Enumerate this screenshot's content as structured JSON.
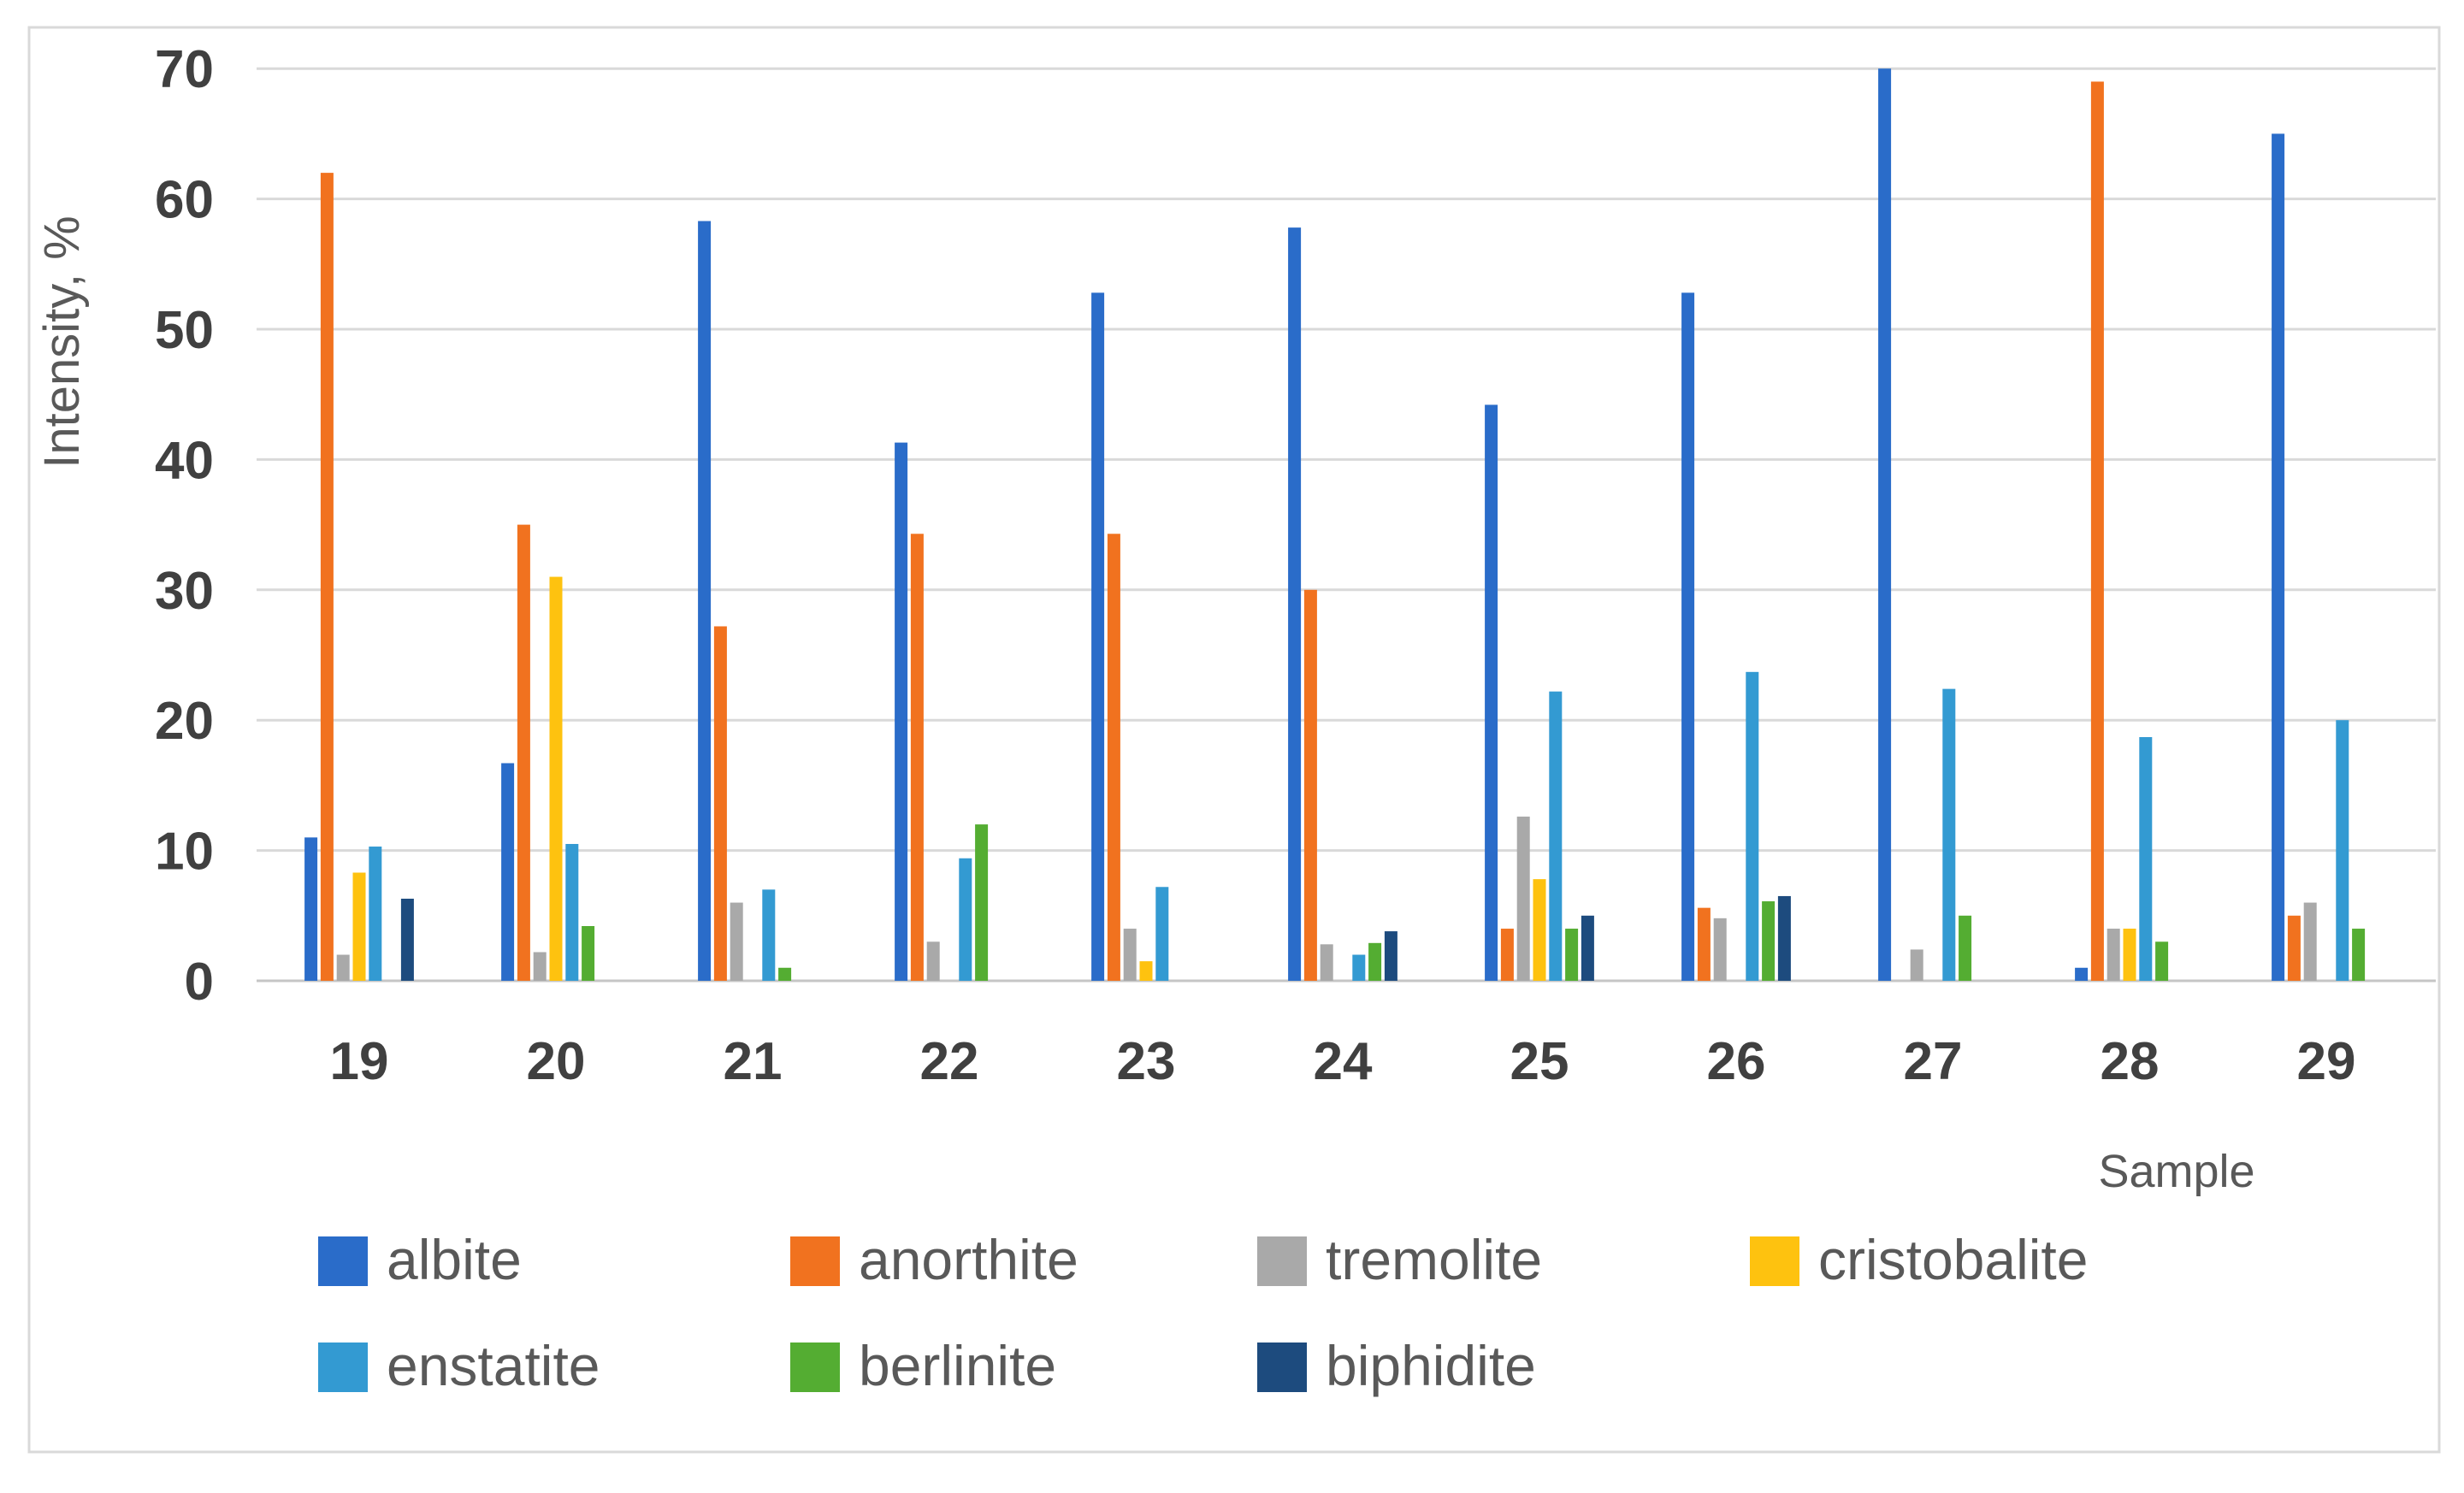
{
  "chart_data": {
    "type": "bar",
    "title": "",
    "xlabel": "Sample",
    "ylabel": "Intensity, %",
    "ylim": [
      0,
      70
    ],
    "yticks": [
      0,
      10,
      20,
      30,
      40,
      50,
      60,
      70
    ],
    "grid": true,
    "legend_position": "bottom",
    "categories": [
      "19",
      "20",
      "21",
      "22",
      "23",
      "24",
      "25",
      "26",
      "27",
      "28",
      "29"
    ],
    "series": [
      {
        "name": "albite",
        "color": "#2a6cc9",
        "values": [
          11,
          16.7,
          58.3,
          41.3,
          52.8,
          57.8,
          44.2,
          52.8,
          70,
          1,
          65
        ]
      },
      {
        "name": "anorthite",
        "color": "#f1721f",
        "values": [
          62,
          35,
          27.2,
          34.3,
          34.3,
          30,
          4,
          5.6,
          0,
          69,
          5
        ]
      },
      {
        "name": "tremolite",
        "color": "#a9a9a9",
        "values": [
          2,
          2.2,
          6,
          3,
          4,
          2.8,
          12.6,
          4.8,
          2.4,
          4,
          6
        ]
      },
      {
        "name": "cristobalite",
        "color": "#fec20f",
        "values": [
          8.3,
          31,
          0,
          0,
          1.5,
          0,
          7.8,
          0,
          0,
          4,
          0
        ]
      },
      {
        "name": "enstatite",
        "color": "#339ad2",
        "values": [
          10.3,
          10.5,
          7,
          9.4,
          7.2,
          2,
          22.2,
          23.7,
          22.4,
          18.7,
          20
        ]
      },
      {
        "name": "berlinite",
        "color": "#54ad32",
        "values": [
          0,
          4.2,
          1,
          12,
          0,
          2.9,
          4,
          6.1,
          5,
          3,
          4
        ]
      },
      {
        "name": "biphidite",
        "color": "#1d4b7e",
        "values": [
          6.3,
          0,
          0,
          0,
          0,
          3.8,
          5,
          6.5,
          0,
          0,
          0
        ]
      }
    ]
  },
  "colors": {
    "gridline": "#d9d9d9",
    "axis_line": "#c6c6c6",
    "panel_border": "#d9d9d9",
    "tick_label": "#404040",
    "axis_title": "#595959",
    "legend_text": "#595959",
    "background": "#ffffff"
  }
}
